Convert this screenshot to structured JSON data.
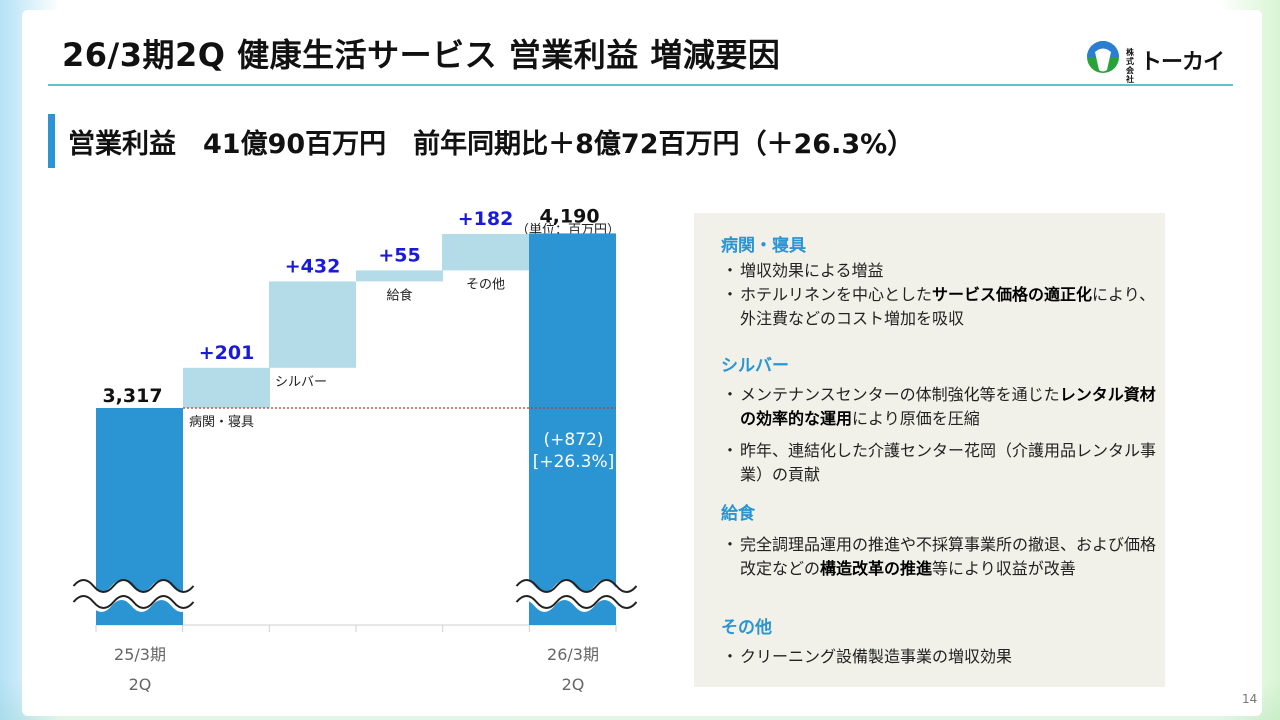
{
  "title": "26/3期2Q 健康生活サービス 営業利益 増減要因",
  "logo": {
    "kabushiki": "株式 会社",
    "brand": "トーカイ",
    "colors": {
      "top": "#2b7fd3",
      "bottom": "#2aa23c",
      "middle": "#ffffff"
    }
  },
  "headline": "営業利益　41億90百万円　前年同期比＋8億72百万円（＋26.3%）",
  "unit_note": "（単位：百万円）",
  "chart_data": {
    "type": "bar",
    "subtype": "waterfall",
    "title": "",
    "unit": "百万円",
    "start": {
      "label": "3,317",
      "value": 3317,
      "x_label": [
        "25/3期",
        "2Q"
      ]
    },
    "steps": [
      {
        "category": "病関・寝具",
        "delta": 201,
        "label": "+201"
      },
      {
        "category": "シルバー",
        "delta": 432,
        "label": "+432"
      },
      {
        "category": "給食",
        "delta": 55,
        "label": "+55"
      },
      {
        "category": "その他",
        "delta": 182,
        "label": "+182"
      }
    ],
    "end": {
      "label": "4,190",
      "value": 4190,
      "x_label": [
        "26/3期",
        "2Q"
      ],
      "change_label": "(+872)",
      "change_pct_label": "[+26.3%]"
    },
    "axis_break": true,
    "reference_line": {
      "value": 3317,
      "style": "dotted",
      "color": "#c0392b"
    },
    "colors": {
      "total": "#2b95d3",
      "step": "#b3dbe8",
      "delta_text": "#1a1adb",
      "total_text": "#111111"
    }
  },
  "factors": {
    "sections": [
      {
        "heading": "病関・寝具",
        "items": [
          {
            "parts": [
              {
                "t": "増収効果による増益",
                "b": false
              }
            ]
          },
          {
            "parts": [
              {
                "t": "ホテルリネンを中心とした",
                "b": false
              },
              {
                "t": "サービス価格の適正化",
                "b": true
              },
              {
                "t": "により、外注費などのコスト増加を吸収",
                "b": false
              }
            ]
          }
        ]
      },
      {
        "heading": "シルバー",
        "items": [
          {
            "parts": [
              {
                "t": "メンテナンスセンターの体制強化等を通じた",
                "b": false
              },
              {
                "t": "レンタル資材の効率的な運用",
                "b": true
              },
              {
                "t": "により原価を圧縮",
                "b": false
              }
            ]
          },
          {
            "parts": [
              {
                "t": "昨年、連結化した介護センター花岡（介護用品レンタル事業）の貢献",
                "b": false
              }
            ]
          }
        ]
      },
      {
        "heading": "給食",
        "items": [
          {
            "parts": [
              {
                "t": "完全調理品運用の推進や不採算事業所の撤退、および価格改定などの",
                "b": false
              },
              {
                "t": "構造改革の推進",
                "b": true
              },
              {
                "t": "等により収益が改善",
                "b": false
              }
            ]
          }
        ]
      },
      {
        "heading": "その他",
        "items": [
          {
            "parts": [
              {
                "t": "クリーニング設備製造事業の増収効果",
                "b": false
              }
            ]
          }
        ]
      }
    ]
  },
  "page_number": "14"
}
